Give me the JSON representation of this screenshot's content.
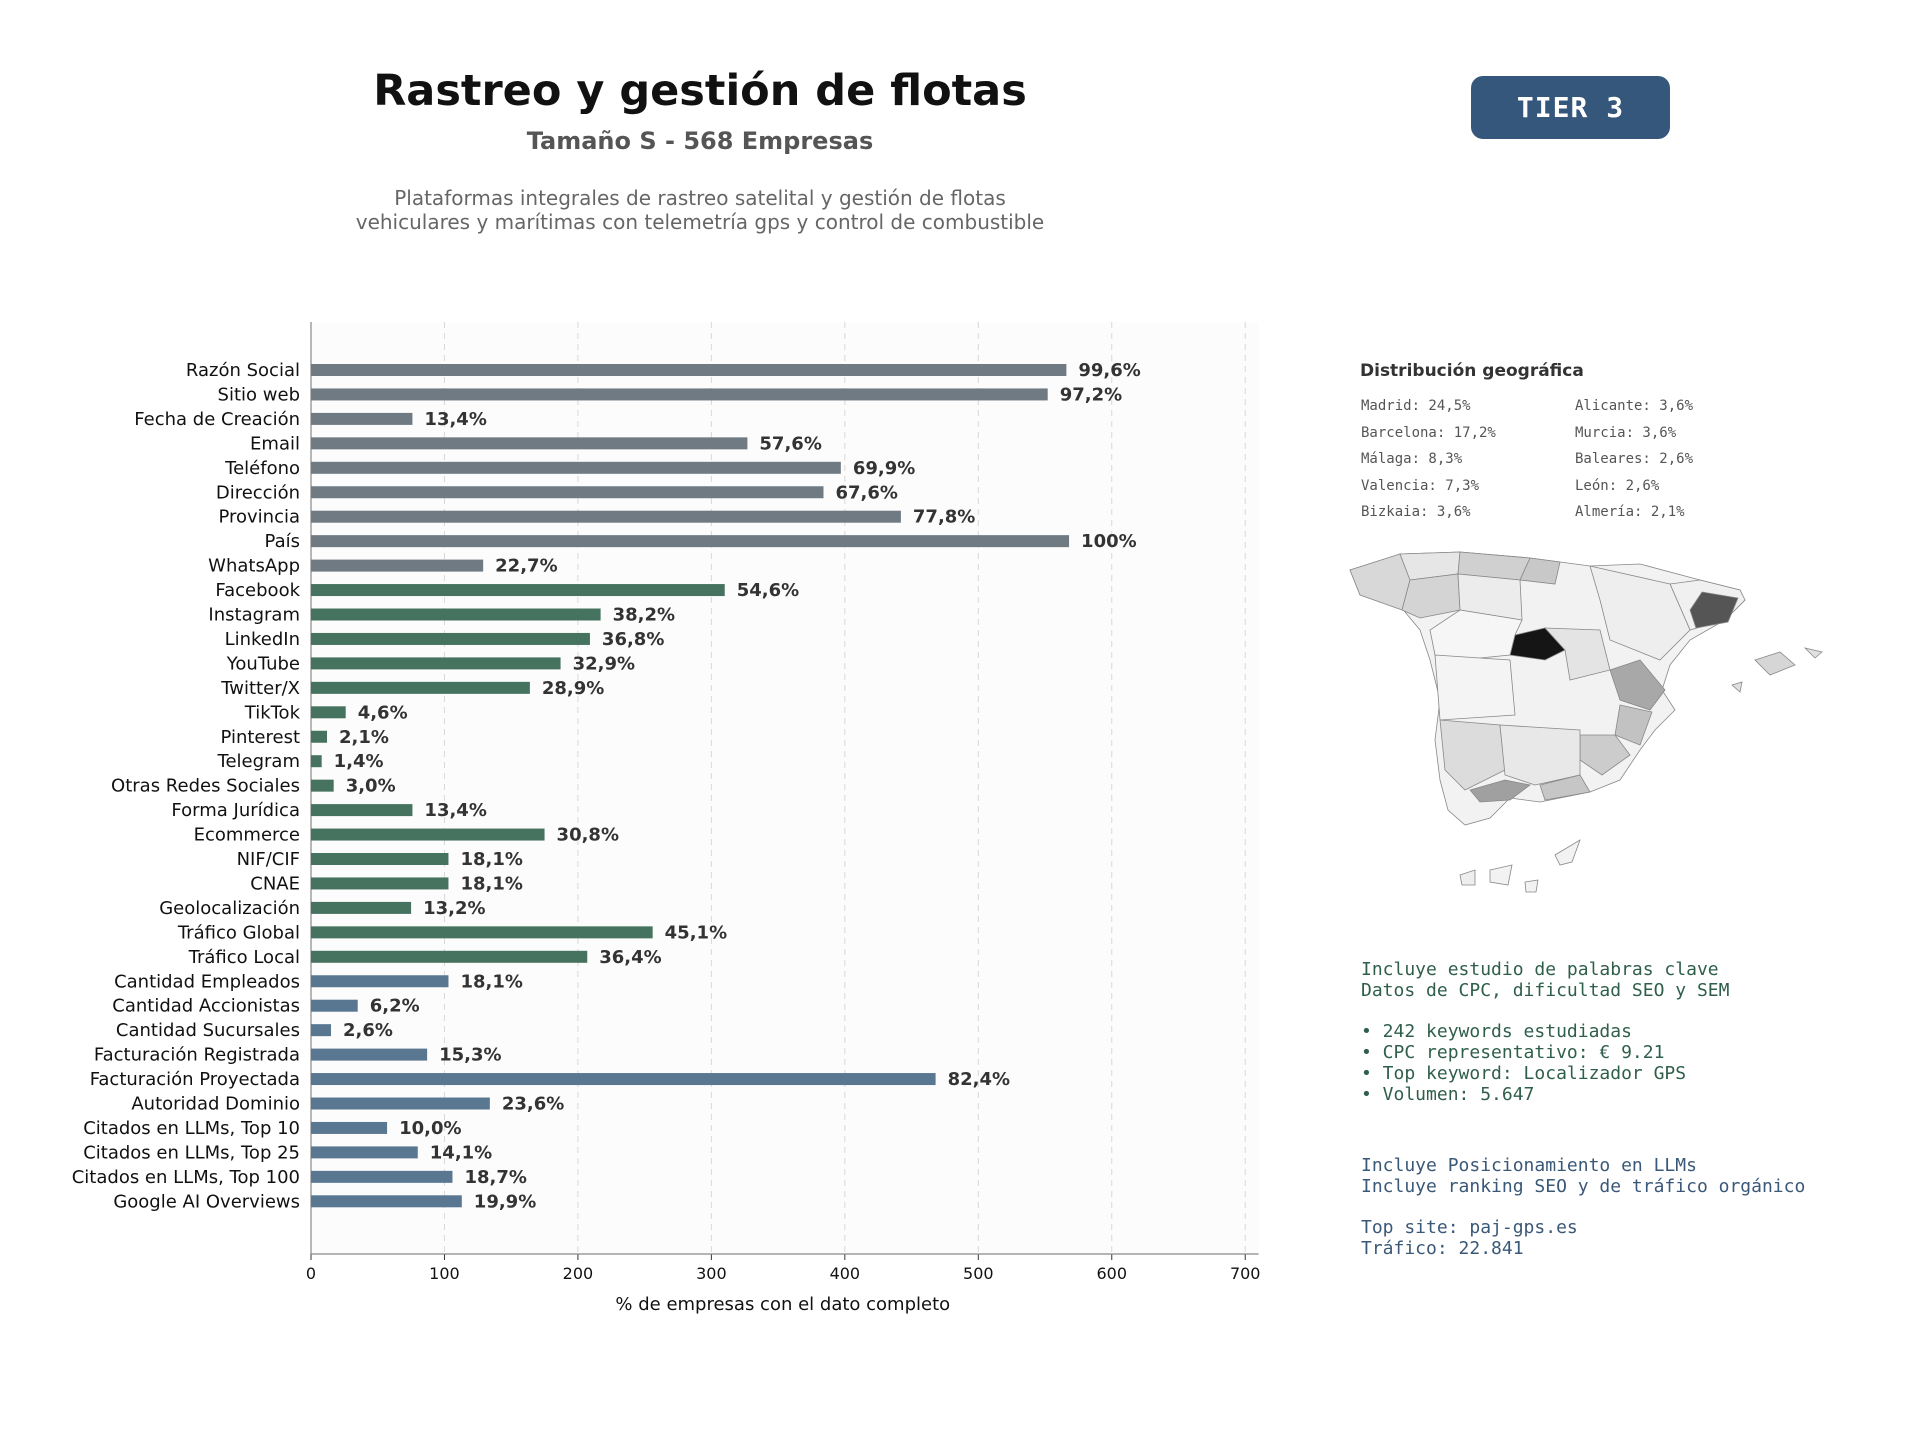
{
  "header": {
    "title": "Rastreo y gestión de flotas",
    "subtitle": "Tamaño S - 568 Empresas",
    "description_line1": "Plataformas integrales de rastreo satelital y gestión de flotas",
    "description_line2": "vehiculares y marítimas con telemetría gps y control de combustible",
    "tier": "TIER 3"
  },
  "chart_data": {
    "type": "bar",
    "orientation": "horizontal",
    "title": "",
    "xlabel": "% de empresas con el dato completo",
    "ylabel": "",
    "xlim": [
      0,
      710
    ],
    "xticks": [
      0,
      100,
      200,
      300,
      400,
      500,
      600,
      700
    ],
    "grid": "vertical dashed",
    "categories": [
      "Razón Social",
      "Sitio web",
      "Fecha de Creación",
      "Email",
      "Teléfono",
      "Dirección",
      "Provincia",
      "País",
      "WhatsApp",
      "Facebook",
      "Instagram",
      "LinkedIn",
      "YouTube",
      "Twitter/X",
      "TikTok",
      "Pinterest",
      "Telegram",
      "Otras Redes Sociales",
      "Forma Jurídica",
      "Ecommerce",
      "NIF/CIF",
      "CNAE",
      "Geolocalización",
      "Tráfico Global",
      "Tráfico Local",
      "Cantidad Empleados",
      "Cantidad Accionistas",
      "Cantidad Sucursales",
      "Facturación Registrada",
      "Facturación Proyectada",
      "Autoridad Dominio",
      "Citados en LLMs, Top 10",
      "Citados en LLMs, Top 25",
      "Citados en LLMs, Top 100",
      "Google AI Overviews"
    ],
    "values": [
      566,
      552,
      76,
      327,
      397,
      384,
      442,
      568,
      129,
      310,
      217,
      209,
      187,
      164,
      26,
      12,
      8,
      17,
      76,
      175,
      103,
      103,
      75,
      256,
      207,
      103,
      35,
      15,
      87,
      468,
      134,
      57,
      80,
      106,
      113
    ],
    "labels": [
      "99,6%",
      "97,2%",
      "13,4%",
      "57,6%",
      "69,9%",
      "67,6%",
      "77,8%",
      "100%",
      "22,7%",
      "54,6%",
      "38,2%",
      "36,8%",
      "32,9%",
      "28,9%",
      "4,6%",
      "2,1%",
      "1,4%",
      "3,0%",
      "13,4%",
      "30,8%",
      "18,1%",
      "18,1%",
      "13,2%",
      "45,1%",
      "36,4%",
      "18,1%",
      "6,2%",
      "2,6%",
      "15,3%",
      "82,4%",
      "23,6%",
      "10,0%",
      "14,1%",
      "18,7%",
      "19,9%"
    ],
    "groups": [
      {
        "color": "#6f7a83",
        "count": 9
      },
      {
        "color": "#46735f",
        "count": 16
      },
      {
        "color": "#5a7792",
        "count": 10
      }
    ]
  },
  "geo": {
    "title": "Distribución geográfica",
    "col1": [
      "Madrid: 24,5%",
      "Barcelona: 17,2%",
      "Málaga: 8,3%",
      "Valencia: 7,3%",
      "Bizkaia: 3,6%"
    ],
    "col2": [
      "Alicante: 3,6%",
      "Murcia: 3,6%",
      "Baleares: 2,6%",
      "León: 2,6%",
      "Almería: 2,1%"
    ]
  },
  "keywords": {
    "line1": "Incluye estudio de palabras clave",
    "line2": "Datos de CPC, dificultad SEO y SEM",
    "b1": "• 242 keywords estudiadas",
    "b2": "• CPC representativo: € 9.21",
    "b3": "• Top keyword: Localizador GPS",
    "b4": "• Volumen: 5.647"
  },
  "llm": {
    "line1": "Incluye Posicionamiento en LLMs",
    "line2": "Incluye ranking SEO y de tráfico orgánico",
    "line3": "Top site: paj-gps.es",
    "line4": "Tráfico: 22.841"
  }
}
